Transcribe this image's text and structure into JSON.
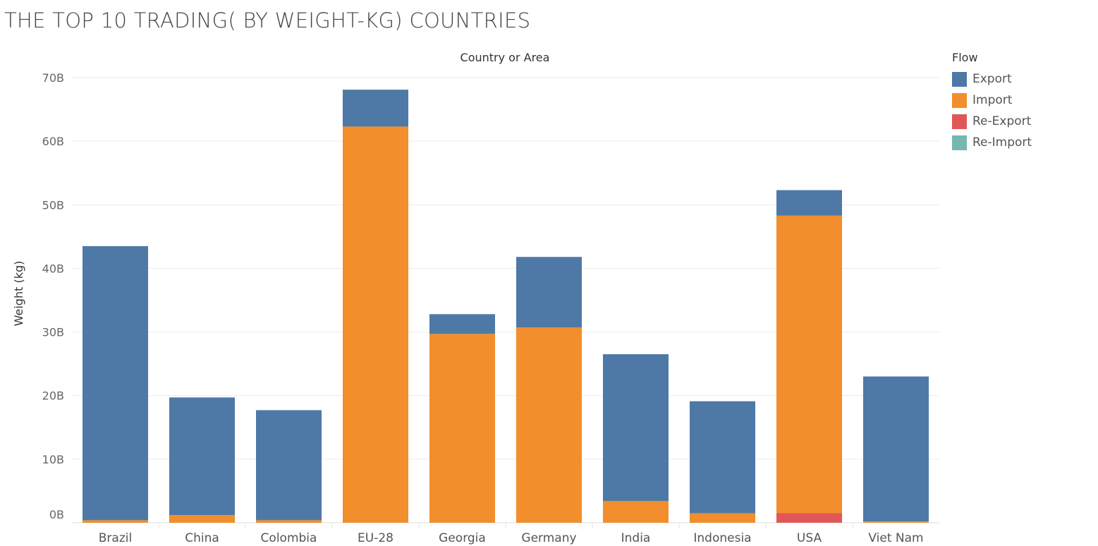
{
  "title": "THE TOP 10 TRADING( BY WEIGHT-KG) COUNTRIES",
  "chart_data": {
    "type": "bar",
    "stacked": true,
    "column_header": "Country or Area",
    "ylabel": "Weight (kg)",
    "ylim": [
      0,
      70000000000
    ],
    "yticks": [
      0,
      10000000000,
      20000000000,
      30000000000,
      40000000000,
      50000000000,
      60000000000,
      70000000000
    ],
    "ytick_labels": [
      "0B",
      "10B",
      "20B",
      "30B",
      "40B",
      "50B",
      "60B",
      "70B"
    ],
    "grid": true,
    "legend_title": "Flow",
    "legend_position": "right",
    "categories": [
      "Brazil",
      "China",
      "Colombia",
      "EU-28",
      "Georgia",
      "Germany",
      "India",
      "Indonesia",
      "USA",
      "Viet Nam"
    ],
    "series": [
      {
        "name": "Re-Export",
        "color": "#e15759",
        "values": [
          0,
          0,
          0,
          0,
          0,
          0,
          0,
          0,
          1500000000,
          0
        ]
      },
      {
        "name": "Import",
        "color": "#f28e2b",
        "values": [
          400000000,
          1200000000,
          400000000,
          62300000000,
          29700000000,
          30700000000,
          3400000000,
          1500000000,
          46800000000,
          200000000
        ]
      },
      {
        "name": "Export",
        "color": "#4e79a7",
        "values": [
          43100000000,
          18500000000,
          17300000000,
          5800000000,
          3100000000,
          11100000000,
          23100000000,
          17600000000,
          4000000000,
          22800000000
        ]
      },
      {
        "name": "Re-Import",
        "color": "#76b7b2",
        "values": [
          0,
          0,
          0,
          0,
          0,
          0,
          0,
          0,
          0,
          0
        ]
      }
    ],
    "legend": [
      {
        "name": "Export",
        "color": "#4e79a7"
      },
      {
        "name": "Import",
        "color": "#f28e2b"
      },
      {
        "name": "Re-Export",
        "color": "#e15759"
      },
      {
        "name": "Re-Import",
        "color": "#76b7b2"
      }
    ]
  }
}
